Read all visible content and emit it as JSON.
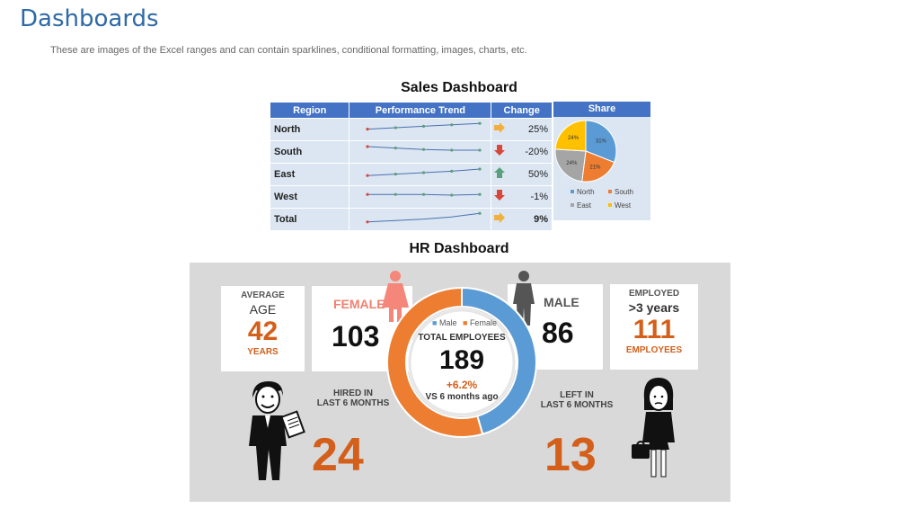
{
  "page": {
    "title": "Dashboards",
    "subtitle": "These are images of the Excel ranges and can contain sparklines, conditional formatting, images, charts, etc."
  },
  "sales": {
    "heading": "Sales Dashboard",
    "columns": [
      "Region",
      "Performance Trend",
      "Change",
      "Share"
    ],
    "rows": [
      {
        "region": "North",
        "change": "25%",
        "arrow": "right",
        "trend": [
          0.4,
          0.5,
          0.6,
          0.7,
          0.8
        ]
      },
      {
        "region": "South",
        "change": "-20%",
        "arrow": "down",
        "trend": [
          0.75,
          0.65,
          0.55,
          0.5,
          0.5
        ]
      },
      {
        "region": "East",
        "change": "50%",
        "arrow": "up",
        "trend": [
          0.3,
          0.4,
          0.5,
          0.6,
          0.75
        ]
      },
      {
        "region": "West",
        "change": "-1%",
        "arrow": "down",
        "trend": [
          0.55,
          0.55,
          0.55,
          0.5,
          0.55
        ]
      },
      {
        "region": "Total",
        "change": "9%",
        "arrow": "right",
        "trend": [
          0.2,
          0.3,
          0.4,
          0.55,
          0.8
        ]
      }
    ],
    "chart_data": {
      "type": "pie",
      "categories": [
        "North",
        "South",
        "East",
        "West"
      ],
      "values": [
        31,
        21,
        24,
        24
      ],
      "labels": [
        "31%",
        "21%",
        "24%",
        "24%"
      ],
      "colors": [
        "#5b9bd5",
        "#ed7d31",
        "#a5a5a5",
        "#ffc000"
      ],
      "legend": "bottom"
    }
  },
  "hr": {
    "heading": "HR Dashboard",
    "avg_age": {
      "line1": "AVERAGE",
      "line2": "AGE",
      "value": "42",
      "unit": "YEARS"
    },
    "female": {
      "label": "FEMALE",
      "value": "103"
    },
    "male": {
      "label": "MALE",
      "value": "86"
    },
    "employed": {
      "line1": "EMPLOYED",
      "line2": ">3 years",
      "value": "111",
      "unit": "EMPLOYEES"
    },
    "donut": {
      "legend_male": "Male",
      "legend_female": "Female",
      "label": "TOTAL EMPLOYEES",
      "value": "189",
      "change": "+6.2%",
      "vs": "VS 6 months ago",
      "chart_data": {
        "type": "pie",
        "categories": [
          "Male",
          "Female"
        ],
        "values": [
          86,
          103
        ],
        "colors": [
          "#5b9bd5",
          "#ed7d31"
        ]
      }
    },
    "hired": {
      "line1": "HIRED IN",
      "line2": "LAST 6 MONTHS",
      "value": "24"
    },
    "left": {
      "line1": "LEFT IN",
      "line2": "LAST 6 MONTHS",
      "value": "13"
    },
    "colors": {
      "accent": "#d35f1a",
      "male": "#5b9bd5",
      "female": "#ed7d31",
      "female_icon": "#f4877a",
      "male_icon": "#555555"
    }
  }
}
